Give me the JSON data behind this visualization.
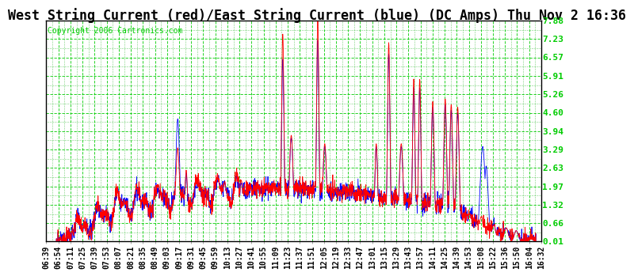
{
  "title": "West String Current (red)/East String Current (blue) (DC Amps) Thu Nov 2 16:36",
  "copyright": "Copyright 2006 Cartronics.com",
  "yticks": [
    0.01,
    0.66,
    1.32,
    1.97,
    2.63,
    3.29,
    3.94,
    4.6,
    5.26,
    5.91,
    6.57,
    7.23,
    7.88
  ],
  "ymin": 0.01,
  "ymax": 7.88,
  "background_color": "#FFFFFF",
  "grid_major_color": "#00CC00",
  "grid_minor_color": "#00AA00",
  "line_color_west": "#FF0000",
  "line_color_east": "#0000FF",
  "title_fontsize": 12,
  "tick_fontsize": 7,
  "copyright_fontsize": 7,
  "xtick_labels": [
    "06:39",
    "06:54",
    "07:11",
    "07:25",
    "07:39",
    "07:53",
    "08:07",
    "08:21",
    "08:35",
    "08:49",
    "09:03",
    "09:17",
    "09:31",
    "09:45",
    "09:59",
    "10:13",
    "10:27",
    "10:41",
    "10:55",
    "11:09",
    "11:23",
    "11:37",
    "11:51",
    "12:05",
    "12:19",
    "12:33",
    "12:47",
    "13:01",
    "13:15",
    "13:29",
    "13:43",
    "13:57",
    "14:11",
    "14:25",
    "14:39",
    "14:53",
    "15:08",
    "15:22",
    "15:36",
    "15:50",
    "16:04",
    "16:32"
  ]
}
